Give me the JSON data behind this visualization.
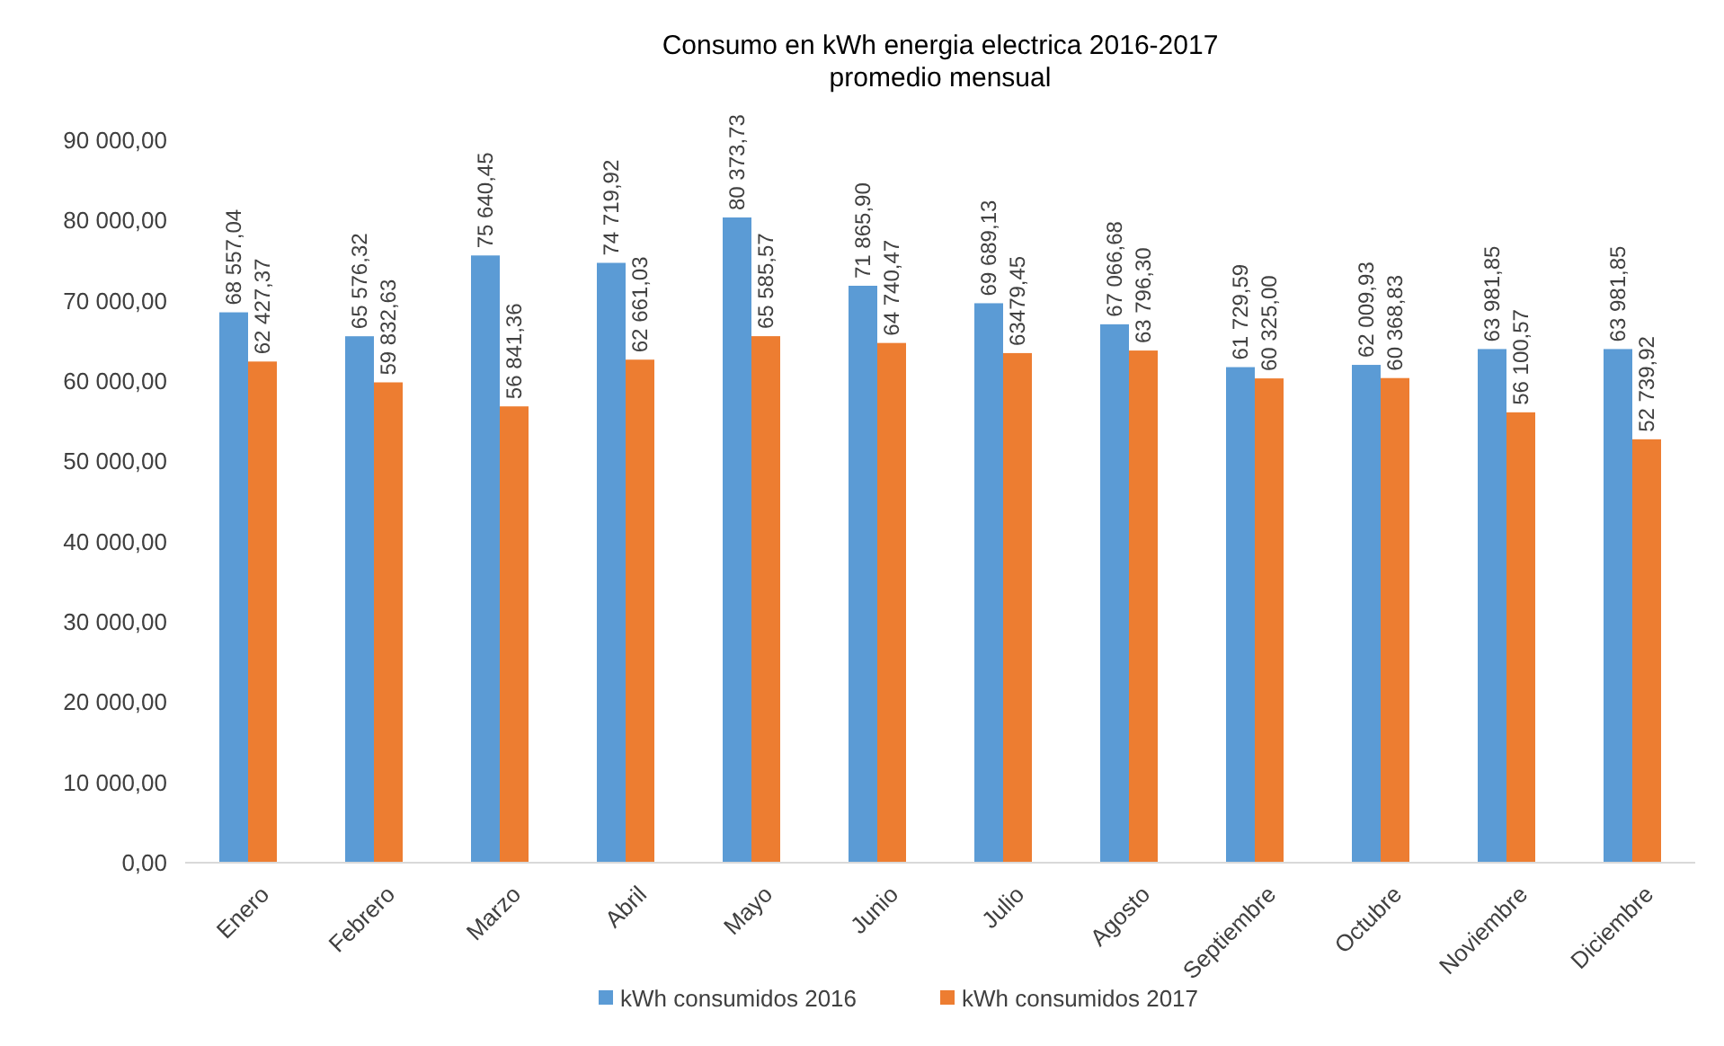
{
  "chart_data": {
    "type": "bar",
    "title": "Consumo en kWh energia electrica 2016-2017",
    "subtitle": "promedio mensual",
    "categories": [
      "Enero",
      "Febrero",
      "Marzo",
      "Abril",
      "Mayo",
      "Junio",
      "Julio",
      "Agosto",
      "Septiembre",
      "Octubre",
      "Noviembre",
      "Diciembre"
    ],
    "series": [
      {
        "name": "kWh consumidos 2016",
        "color": "#5b9bd5",
        "values": [
          68557.04,
          65576.32,
          75640.45,
          74719.92,
          80373.73,
          71865.9,
          69689.13,
          67066.68,
          61729.59,
          62009.93,
          63981.85,
          63981.85
        ],
        "value_labels": [
          "68 557,04",
          "65 576,32",
          "75 640,45",
          "74 719,92",
          "80 373,73",
          "71 865,90",
          "69 689,13",
          "67 066,68",
          "61 729,59",
          "62 009,93",
          "63 981,85",
          "63 981,85"
        ]
      },
      {
        "name": "kWh consumidos 2017",
        "color": "#ed7d31",
        "values": [
          62427.37,
          59832.63,
          56841.36,
          62661.03,
          65585.57,
          64740.47,
          63479.45,
          63796.3,
          60325.0,
          60368.83,
          56100.57,
          52739.92
        ],
        "value_labels": [
          "62 427,37",
          "59 832,63",
          "56 841,36",
          "62 661,03",
          "65 585,57",
          "64 740,47",
          "63479,45",
          "63 796,30",
          "60 325,00",
          "60 368,83",
          "56 100,57",
          "52 739,92"
        ]
      }
    ],
    "ylim": [
      0,
      90000
    ],
    "yticks": [
      {
        "value": 0,
        "label": "0,00"
      },
      {
        "value": 10000,
        "label": "10 000,00"
      },
      {
        "value": 20000,
        "label": "20 000,00"
      },
      {
        "value": 30000,
        "label": "30 000,00"
      },
      {
        "value": 40000,
        "label": "40 000,00"
      },
      {
        "value": 50000,
        "label": "50 000,00"
      },
      {
        "value": 60000,
        "label": "60 000,00"
      },
      {
        "value": 70000,
        "label": "70 000,00"
      },
      {
        "value": 80000,
        "label": "80 000,00"
      },
      {
        "value": 90000,
        "label": "90 000,00"
      }
    ],
    "legend": "bottom"
  }
}
